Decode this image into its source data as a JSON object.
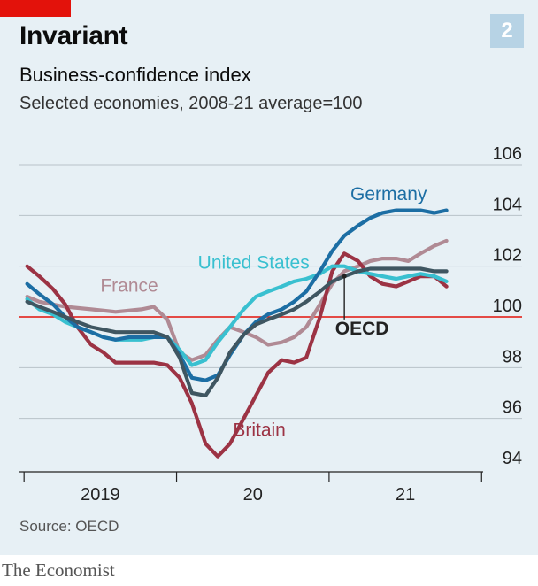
{
  "header": {
    "title": "Invariant",
    "chart_number": "2",
    "subtitle": "Business-confidence index",
    "note": "Selected economies, 2008-21 average=100"
  },
  "footer": {
    "source": "Source: OECD",
    "brand": "The Economist"
  },
  "colors": {
    "background": "#e7f0f5",
    "brand_red": "#e3120b",
    "number_box": "#b7d3e5",
    "grid": "#b8c2c9",
    "baseline": "#e3120b"
  },
  "chart_data": {
    "type": "line",
    "title": "Invariant",
    "subtitle": "Business-confidence index",
    "ylabel": "Selected economies, 2008-21 average=100",
    "ylim": [
      94,
      106
    ],
    "yticks": [
      94,
      96,
      98,
      100,
      102,
      104,
      106
    ],
    "xlim": [
      2018.95,
      2021.99
    ],
    "xticks": [
      2019,
      2020,
      2021
    ],
    "xtick_labels": [
      "2019",
      "20",
      "21"
    ],
    "baseline": 100,
    "grid": true,
    "legend": "direct labels on lines",
    "series": [
      {
        "name": "France",
        "color": "#b08a94",
        "points": [
          [
            2019.0,
            100.8
          ],
          [
            2019.08,
            100.6
          ],
          [
            2019.25,
            100.4
          ],
          [
            2019.42,
            100.3
          ],
          [
            2019.58,
            100.2
          ],
          [
            2019.75,
            100.3
          ],
          [
            2019.83,
            100.4
          ],
          [
            2019.92,
            99.9
          ],
          [
            2020.0,
            98.6
          ],
          [
            2020.08,
            98.3
          ],
          [
            2020.17,
            98.5
          ],
          [
            2020.25,
            99.1
          ],
          [
            2020.33,
            99.6
          ],
          [
            2020.42,
            99.4
          ],
          [
            2020.5,
            99.2
          ],
          [
            2020.58,
            98.9
          ],
          [
            2020.67,
            99.0
          ],
          [
            2020.75,
            99.2
          ],
          [
            2020.83,
            99.6
          ],
          [
            2020.92,
            100.5
          ],
          [
            2021.0,
            101.3
          ],
          [
            2021.08,
            101.8
          ],
          [
            2021.17,
            102.0
          ],
          [
            2021.25,
            102.2
          ],
          [
            2021.33,
            102.3
          ],
          [
            2021.42,
            102.3
          ],
          [
            2021.5,
            102.2
          ],
          [
            2021.58,
            102.5
          ],
          [
            2021.67,
            102.8
          ],
          [
            2021.75,
            103.0
          ]
        ]
      },
      {
        "name": "Britain",
        "color": "#9c3344",
        "points": [
          [
            2019.0,
            102.0
          ],
          [
            2019.08,
            101.6
          ],
          [
            2019.17,
            101.1
          ],
          [
            2019.25,
            100.5
          ],
          [
            2019.33,
            99.6
          ],
          [
            2019.42,
            98.9
          ],
          [
            2019.5,
            98.6
          ],
          [
            2019.58,
            98.2
          ],
          [
            2019.67,
            98.2
          ],
          [
            2019.75,
            98.2
          ],
          [
            2019.83,
            98.2
          ],
          [
            2019.92,
            98.1
          ],
          [
            2020.0,
            97.6
          ],
          [
            2020.08,
            96.6
          ],
          [
            2020.17,
            95.0
          ],
          [
            2020.25,
            94.5
          ],
          [
            2020.33,
            95.0
          ],
          [
            2020.42,
            96.0
          ],
          [
            2020.5,
            96.9
          ],
          [
            2020.58,
            97.8
          ],
          [
            2020.67,
            98.3
          ],
          [
            2020.75,
            98.2
          ],
          [
            2020.83,
            98.4
          ],
          [
            2020.92,
            100.0
          ],
          [
            2021.0,
            101.8
          ],
          [
            2021.08,
            102.5
          ],
          [
            2021.17,
            102.2
          ],
          [
            2021.25,
            101.6
          ],
          [
            2021.33,
            101.3
          ],
          [
            2021.42,
            101.2
          ],
          [
            2021.5,
            101.4
          ],
          [
            2021.58,
            101.6
          ],
          [
            2021.67,
            101.6
          ],
          [
            2021.75,
            101.2
          ]
        ]
      },
      {
        "name": "United States",
        "color": "#39c0d0",
        "points": [
          [
            2019.0,
            100.7
          ],
          [
            2019.08,
            100.3
          ],
          [
            2019.17,
            100.1
          ],
          [
            2019.25,
            99.8
          ],
          [
            2019.33,
            99.6
          ],
          [
            2019.42,
            99.4
          ],
          [
            2019.5,
            99.2
          ],
          [
            2019.58,
            99.1
          ],
          [
            2019.67,
            99.1
          ],
          [
            2019.75,
            99.1
          ],
          [
            2019.83,
            99.2
          ],
          [
            2019.92,
            99.2
          ],
          [
            2020.0,
            98.7
          ],
          [
            2020.08,
            98.1
          ],
          [
            2020.17,
            98.3
          ],
          [
            2020.25,
            99.0
          ],
          [
            2020.33,
            99.6
          ],
          [
            2020.42,
            100.3
          ],
          [
            2020.5,
            100.8
          ],
          [
            2020.58,
            101.0
          ],
          [
            2020.67,
            101.2
          ],
          [
            2020.75,
            101.4
          ],
          [
            2020.83,
            101.5
          ],
          [
            2020.92,
            101.7
          ],
          [
            2021.0,
            102.0
          ],
          [
            2021.08,
            102.0
          ],
          [
            2021.17,
            101.8
          ],
          [
            2021.25,
            101.7
          ],
          [
            2021.33,
            101.6
          ],
          [
            2021.42,
            101.5
          ],
          [
            2021.5,
            101.6
          ],
          [
            2021.58,
            101.7
          ],
          [
            2021.67,
            101.6
          ],
          [
            2021.75,
            101.4
          ]
        ]
      },
      {
        "name": "Germany",
        "color": "#1c6ea4",
        "points": [
          [
            2019.0,
            101.3
          ],
          [
            2019.08,
            100.9
          ],
          [
            2019.17,
            100.5
          ],
          [
            2019.25,
            100.0
          ],
          [
            2019.33,
            99.6
          ],
          [
            2019.42,
            99.4
          ],
          [
            2019.5,
            99.2
          ],
          [
            2019.58,
            99.1
          ],
          [
            2019.67,
            99.2
          ],
          [
            2019.75,
            99.2
          ],
          [
            2019.83,
            99.2
          ],
          [
            2019.92,
            99.2
          ],
          [
            2020.0,
            98.5
          ],
          [
            2020.08,
            97.6
          ],
          [
            2020.17,
            97.5
          ],
          [
            2020.25,
            97.7
          ],
          [
            2020.33,
            98.5
          ],
          [
            2020.42,
            99.3
          ],
          [
            2020.5,
            99.8
          ],
          [
            2020.58,
            100.1
          ],
          [
            2020.67,
            100.3
          ],
          [
            2020.75,
            100.6
          ],
          [
            2020.83,
            101.0
          ],
          [
            2020.92,
            101.8
          ],
          [
            2021.0,
            102.6
          ],
          [
            2021.08,
            103.2
          ],
          [
            2021.17,
            103.6
          ],
          [
            2021.25,
            103.9
          ],
          [
            2021.33,
            104.1
          ],
          [
            2021.42,
            104.2
          ],
          [
            2021.5,
            104.2
          ],
          [
            2021.58,
            104.2
          ],
          [
            2021.67,
            104.1
          ],
          [
            2021.75,
            104.2
          ]
        ]
      },
      {
        "name": "OECD",
        "color": "#3f5661",
        "points": [
          [
            2019.0,
            100.6
          ],
          [
            2019.08,
            100.4
          ],
          [
            2019.17,
            100.2
          ],
          [
            2019.25,
            100.0
          ],
          [
            2019.33,
            99.8
          ],
          [
            2019.42,
            99.6
          ],
          [
            2019.5,
            99.5
          ],
          [
            2019.58,
            99.4
          ],
          [
            2019.67,
            99.4
          ],
          [
            2019.75,
            99.4
          ],
          [
            2019.83,
            99.4
          ],
          [
            2019.92,
            99.2
          ],
          [
            2020.0,
            98.4
          ],
          [
            2020.08,
            97.0
          ],
          [
            2020.17,
            96.9
          ],
          [
            2020.25,
            97.6
          ],
          [
            2020.33,
            98.6
          ],
          [
            2020.42,
            99.3
          ],
          [
            2020.5,
            99.7
          ],
          [
            2020.58,
            99.9
          ],
          [
            2020.67,
            100.1
          ],
          [
            2020.75,
            100.3
          ],
          [
            2020.83,
            100.6
          ],
          [
            2020.92,
            101.0
          ],
          [
            2021.0,
            101.4
          ],
          [
            2021.08,
            101.6
          ],
          [
            2021.17,
            101.8
          ],
          [
            2021.25,
            101.9
          ],
          [
            2021.33,
            101.9
          ],
          [
            2021.42,
            101.9
          ],
          [
            2021.5,
            101.9
          ],
          [
            2021.58,
            101.9
          ],
          [
            2021.67,
            101.8
          ],
          [
            2021.75,
            101.8
          ]
        ]
      }
    ],
    "labels": [
      {
        "series": "Germany",
        "text": "Germany",
        "x": 2021.12,
        "y": 104.6
      },
      {
        "series": "United States",
        "text": "United States",
        "x": 2020.12,
        "y": 101.9
      },
      {
        "series": "France",
        "text": "France",
        "x": 2019.48,
        "y": 101.0
      },
      {
        "series": "OECD",
        "text": "OECD",
        "x": 2021.02,
        "y": 99.3
      },
      {
        "series": "Britain",
        "text": "Britain",
        "x": 2020.35,
        "y": 95.3
      }
    ]
  }
}
